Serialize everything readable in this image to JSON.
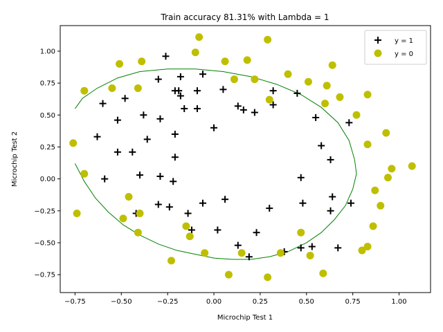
{
  "chart_data": {
    "type": "scatter",
    "title": "Train accuracy 81.31% with Lambda = 1",
    "xlabel": "Microchip Test 1",
    "ylabel": "Microchip Test 2",
    "xlim": [
      -0.83,
      1.17
    ],
    "ylim": [
      -0.89,
      1.2
    ],
    "xticks": [
      -0.75,
      -0.5,
      -0.25,
      0.0,
      0.25,
      0.5,
      0.75,
      1.0
    ],
    "xtick_labels": [
      "−0.75",
      "−0.50",
      "−0.25",
      "0.00",
      "0.25",
      "0.50",
      "0.75",
      "1.00"
    ],
    "yticks": [
      -0.75,
      -0.5,
      -0.25,
      0.0,
      0.25,
      0.5,
      0.75,
      1.0
    ],
    "ytick_labels": [
      "−0.75",
      "−0.50",
      "−0.25",
      "0.00",
      "0.25",
      "0.50",
      "0.75",
      "1.00"
    ],
    "grid": false,
    "legend_position": "top-right",
    "series": [
      {
        "name": "y = 1",
        "marker": "plus",
        "color": "#000000",
        "points": [
          [
            -0.26,
            0.96
          ],
          [
            -0.18,
            0.8
          ],
          [
            -0.06,
            0.82
          ],
          [
            -0.3,
            0.78
          ],
          [
            -0.48,
            0.63
          ],
          [
            -0.6,
            0.59
          ],
          [
            -0.21,
            0.69
          ],
          [
            -0.19,
            0.69
          ],
          [
            -0.09,
            0.69
          ],
          [
            -0.18,
            0.65
          ],
          [
            0.05,
            0.7
          ],
          [
            0.32,
            0.69
          ],
          [
            0.45,
            0.67
          ],
          [
            -0.16,
            0.55
          ],
          [
            -0.09,
            0.55
          ],
          [
            0.13,
            0.57
          ],
          [
            0.16,
            0.54
          ],
          [
            0.22,
            0.52
          ],
          [
            0.32,
            0.58
          ],
          [
            -0.38,
            0.5
          ],
          [
            -0.29,
            0.47
          ],
          [
            -0.52,
            0.46
          ],
          [
            0.55,
            0.48
          ],
          [
            0.73,
            0.44
          ],
          [
            -0.0,
            0.4
          ],
          [
            -0.63,
            0.33
          ],
          [
            -0.21,
            0.35
          ],
          [
            -0.36,
            0.31
          ],
          [
            0.58,
            0.26
          ],
          [
            -0.52,
            0.21
          ],
          [
            -0.44,
            0.21
          ],
          [
            -0.21,
            0.17
          ],
          [
            0.63,
            0.15
          ],
          [
            -0.59,
            0.0
          ],
          [
            -0.4,
            0.03
          ],
          [
            -0.29,
            0.02
          ],
          [
            -0.22,
            -0.02
          ],
          [
            0.47,
            0.01
          ],
          [
            -0.3,
            -0.2
          ],
          [
            -0.24,
            -0.22
          ],
          [
            -0.06,
            -0.19
          ],
          [
            0.06,
            -0.16
          ],
          [
            0.3,
            -0.23
          ],
          [
            0.48,
            -0.19
          ],
          [
            0.64,
            -0.14
          ],
          [
            0.74,
            -0.19
          ],
          [
            -0.42,
            -0.27
          ],
          [
            -0.14,
            -0.27
          ],
          [
            0.63,
            -0.25
          ],
          [
            -0.12,
            -0.4
          ],
          [
            0.02,
            -0.4
          ],
          [
            0.23,
            -0.42
          ],
          [
            0.13,
            -0.52
          ],
          [
            0.47,
            -0.54
          ],
          [
            0.53,
            -0.53
          ],
          [
            0.67,
            -0.54
          ],
          [
            0.38,
            -0.57
          ],
          [
            0.19,
            -0.61
          ]
        ]
      },
      {
        "name": "y = 0",
        "marker": "circle",
        "color": "#bfbf00",
        "points": [
          [
            -0.08,
            1.11
          ],
          [
            0.29,
            1.09
          ],
          [
            -0.1,
            0.99
          ],
          [
            -0.51,
            0.9
          ],
          [
            -0.39,
            0.92
          ],
          [
            0.06,
            0.92
          ],
          [
            0.18,
            0.93
          ],
          [
            0.64,
            0.89
          ],
          [
            0.4,
            0.82
          ],
          [
            0.11,
            0.78
          ],
          [
            0.22,
            0.78
          ],
          [
            0.51,
            0.76
          ],
          [
            0.61,
            0.73
          ],
          [
            -0.7,
            0.69
          ],
          [
            -0.55,
            0.71
          ],
          [
            -0.41,
            0.71
          ],
          [
            0.83,
            0.66
          ],
          [
            0.3,
            0.62
          ],
          [
            0.68,
            0.64
          ],
          [
            0.6,
            0.59
          ],
          [
            0.77,
            0.5
          ],
          [
            0.93,
            0.36
          ],
          [
            -0.76,
            0.28
          ],
          [
            0.83,
            0.27
          ],
          [
            1.07,
            0.1
          ],
          [
            0.96,
            0.08
          ],
          [
            -0.7,
            0.04
          ],
          [
            0.94,
            0.01
          ],
          [
            0.87,
            -0.09
          ],
          [
            -0.46,
            -0.14
          ],
          [
            0.9,
            -0.21
          ],
          [
            -0.74,
            -0.27
          ],
          [
            -0.49,
            -0.31
          ],
          [
            -0.4,
            -0.27
          ],
          [
            -0.15,
            -0.37
          ],
          [
            0.86,
            -0.37
          ],
          [
            -0.41,
            -0.42
          ],
          [
            -0.13,
            -0.45
          ],
          [
            0.47,
            -0.42
          ],
          [
            0.83,
            -0.53
          ],
          [
            0.8,
            -0.56
          ],
          [
            -0.05,
            -0.58
          ],
          [
            0.15,
            -0.58
          ],
          [
            0.36,
            -0.58
          ],
          [
            0.52,
            -0.6
          ],
          [
            -0.23,
            -0.64
          ],
          [
            0.08,
            -0.75
          ],
          [
            0.29,
            -0.77
          ],
          [
            0.59,
            -0.74
          ]
        ]
      }
    ],
    "decision_boundary": {
      "color": "#008000",
      "points": [
        [
          -0.75,
          0.12
        ],
        [
          -0.7,
          -0.02
        ],
        [
          -0.64,
          -0.15
        ],
        [
          -0.57,
          -0.26
        ],
        [
          -0.49,
          -0.36
        ],
        [
          -0.4,
          -0.44
        ],
        [
          -0.3,
          -0.51
        ],
        [
          -0.2,
          -0.56
        ],
        [
          -0.1,
          -0.59
        ],
        [
          0.0,
          -0.62
        ],
        [
          0.1,
          -0.63
        ],
        [
          0.2,
          -0.63
        ],
        [
          0.3,
          -0.61
        ],
        [
          0.4,
          -0.57
        ],
        [
          0.5,
          -0.5
        ],
        [
          0.58,
          -0.42
        ],
        [
          0.65,
          -0.32
        ],
        [
          0.71,
          -0.21
        ],
        [
          0.75,
          -0.08
        ],
        [
          0.77,
          0.04
        ],
        [
          0.76,
          0.15
        ],
        [
          0.73,
          0.3
        ],
        [
          0.67,
          0.44
        ],
        [
          0.58,
          0.56
        ],
        [
          0.47,
          0.66
        ],
        [
          0.34,
          0.74
        ],
        [
          0.2,
          0.8
        ],
        [
          0.05,
          0.84
        ],
        [
          -0.1,
          0.86
        ],
        [
          -0.25,
          0.86
        ],
        [
          -0.4,
          0.84
        ],
        [
          -0.52,
          0.79
        ],
        [
          -0.63,
          0.71
        ],
        [
          -0.71,
          0.63
        ],
        [
          -0.75,
          0.55
        ]
      ]
    }
  }
}
